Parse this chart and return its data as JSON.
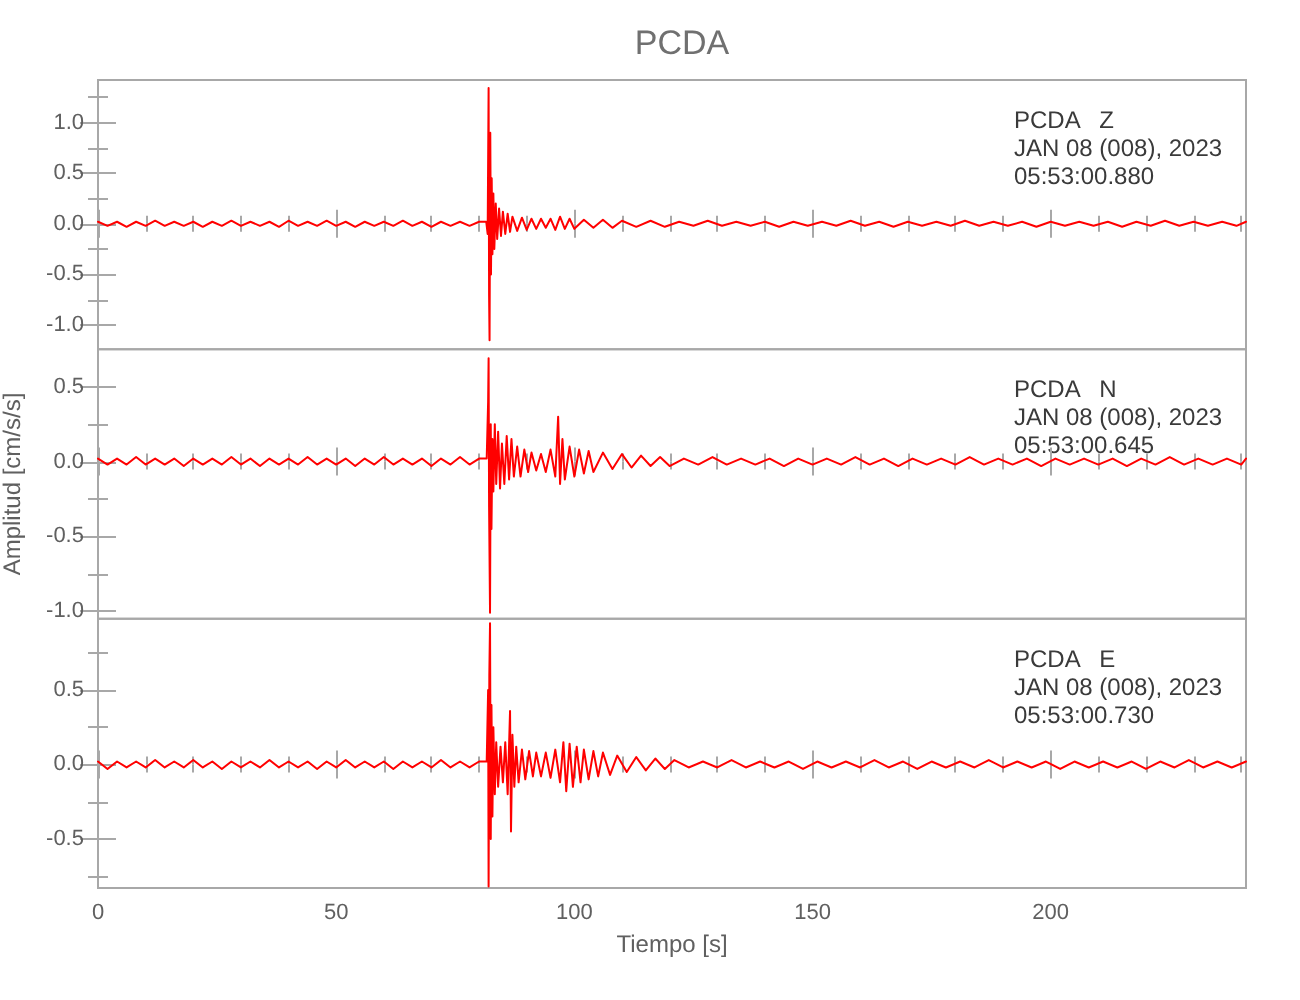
{
  "chart_data": [
    {
      "type": "line",
      "title": "PCDA",
      "color": "#ff0000",
      "tick_labels": "y",
      "xlim": [
        0,
        241
      ],
      "xticks": [
        0,
        {
          "value": 10,
          "label": null
        },
        {
          "value": 20,
          "label": null
        },
        {
          "value": 30,
          "label": null
        },
        {
          "value": 40,
          "label": null
        },
        50,
        {
          "value": 60,
          "label": null
        },
        {
          "value": 70,
          "label": null
        },
        {
          "value": 80,
          "label": null
        },
        {
          "value": 90,
          "label": null
        },
        100,
        {
          "value": 110,
          "label": null
        },
        {
          "value": 120,
          "label": null
        },
        {
          "value": 130,
          "label": null
        },
        {
          "value": 140,
          "label": null
        },
        150,
        {
          "value": 160,
          "label": null
        },
        {
          "value": 170,
          "label": null
        },
        {
          "value": 180,
          "label": null
        },
        {
          "value": 190,
          "label": null
        },
        200,
        {
          "value": 210,
          "label": null
        },
        {
          "value": 220,
          "label": null
        },
        {
          "value": 230,
          "label": null
        },
        {
          "value": 240,
          "label": null
        }
      ],
      "ylim": [
        -1.24,
        1.42
      ],
      "yticks": [
        {
          "value": -1,
          "label": "-1.0"
        },
        {
          "value": -0.75,
          "label": null
        },
        {
          "value": -0.5,
          "label": "-0.5"
        },
        {
          "value": -0.25,
          "label": null
        },
        {
          "value": 0,
          "label": "0.0"
        },
        {
          "value": 0.25,
          "label": null
        },
        {
          "value": 0.5,
          "label": "0.5"
        },
        {
          "value": 0.75,
          "label": null
        },
        {
          "value": 1,
          "label": "1.0"
        },
        {
          "value": 1.25,
          "label": null
        }
      ],
      "annotations": [
        "PCDA   Z",
        "JAN 08 (008), 2023",
        "05:53:00.880"
      ],
      "x": [
        0,
        2,
        4,
        6,
        8,
        10,
        12,
        14,
        16,
        18,
        20,
        22,
        24,
        26,
        28,
        30,
        32,
        34,
        36,
        38,
        40,
        42,
        44,
        46,
        48,
        50,
        52,
        54,
        56,
        58,
        60,
        62,
        64,
        66,
        68,
        70,
        72,
        74,
        76,
        78,
        80,
        81.5,
        81.8,
        82,
        82.1,
        82.2,
        82.35,
        82.5,
        82.65,
        82.8,
        83,
        83.2,
        83.5,
        83.8,
        84.2,
        84.6,
        85,
        85.5,
        86,
        86.5,
        87,
        88,
        89,
        90,
        91,
        92,
        93,
        94,
        95,
        96,
        97,
        98,
        99,
        100,
        102,
        104,
        106,
        108,
        110,
        113,
        116,
        119,
        122,
        125,
        128,
        131,
        134,
        137,
        140,
        143,
        146,
        149,
        152,
        155,
        158,
        161,
        164,
        167,
        170,
        173,
        176,
        179,
        182,
        185,
        188,
        191,
        194,
        197,
        200,
        203,
        206,
        209,
        212,
        215,
        218,
        221,
        224,
        227,
        230,
        233,
        236,
        239,
        241
      ],
      "values": [
        0.02,
        -0.02,
        0.02,
        -0.03,
        0.02,
        -0.02,
        0.03,
        -0.02,
        0.02,
        -0.02,
        0.02,
        -0.03,
        0.02,
        -0.02,
        0.03,
        -0.02,
        0.02,
        -0.02,
        0.02,
        -0.03,
        0.03,
        -0.02,
        0.02,
        -0.02,
        0.03,
        -0.02,
        0.02,
        -0.03,
        0.02,
        -0.02,
        0.02,
        -0.02,
        0.03,
        -0.02,
        0.02,
        -0.03,
        0.02,
        -0.02,
        0.02,
        -0.02,
        0.02,
        0.02,
        -0.1,
        1.34,
        -0.7,
        -1.15,
        0.9,
        -0.5,
        0.45,
        -0.3,
        0.3,
        -0.25,
        0.2,
        -0.15,
        0.15,
        -0.12,
        0.12,
        -0.1,
        0.1,
        -0.08,
        0.07,
        -0.07,
        0.06,
        -0.06,
        0.05,
        -0.05,
        0.05,
        -0.04,
        0.05,
        -0.06,
        0.07,
        -0.05,
        0.05,
        -0.05,
        0.04,
        -0.04,
        0.04,
        -0.04,
        0.03,
        -0.03,
        0.03,
        -0.03,
        0.02,
        -0.02,
        0.03,
        -0.02,
        0.02,
        -0.02,
        0.02,
        -0.03,
        0.02,
        -0.02,
        0.02,
        -0.02,
        0.03,
        -0.02,
        0.02,
        -0.03,
        0.02,
        -0.02,
        0.02,
        -0.02,
        0.03,
        -0.02,
        0.02,
        -0.02,
        0.02,
        -0.03,
        0.02,
        -0.02,
        0.02,
        -0.02,
        0.02,
        -0.03,
        0.02,
        -0.02,
        0.03,
        -0.02,
        0.02,
        -0.02,
        0.02,
        -0.02,
        0.02
      ]
    },
    {
      "type": "line",
      "ylabel": "Amplitud [cm/s/s]",
      "color": "#ff0000",
      "tick_labels": "y",
      "xlim": [
        0,
        241
      ],
      "xticks": [
        0,
        {
          "value": 10,
          "label": null
        },
        {
          "value": 20,
          "label": null
        },
        {
          "value": 30,
          "label": null
        },
        {
          "value": 40,
          "label": null
        },
        50,
        {
          "value": 60,
          "label": null
        },
        {
          "value": 70,
          "label": null
        },
        {
          "value": 80,
          "label": null
        },
        {
          "value": 90,
          "label": null
        },
        100,
        {
          "value": 110,
          "label": null
        },
        {
          "value": 120,
          "label": null
        },
        {
          "value": 130,
          "label": null
        },
        {
          "value": 140,
          "label": null
        },
        150,
        {
          "value": 160,
          "label": null
        },
        {
          "value": 170,
          "label": null
        },
        {
          "value": 180,
          "label": null
        },
        {
          "value": 190,
          "label": null
        },
        200,
        {
          "value": 210,
          "label": null
        },
        {
          "value": 220,
          "label": null
        },
        {
          "value": 230,
          "label": null
        },
        {
          "value": 240,
          "label": null
        }
      ],
      "ylim": [
        -1.05,
        0.75
      ],
      "yticks": [
        {
          "value": -1,
          "label": "-1.0"
        },
        {
          "value": -0.75,
          "label": null
        },
        {
          "value": -0.5,
          "label": "-0.5"
        },
        {
          "value": -0.25,
          "label": null
        },
        {
          "value": 0,
          "label": "0.0"
        },
        {
          "value": 0.25,
          "label": null
        },
        {
          "value": 0.5,
          "label": "0.5"
        }
      ],
      "annotations": [
        "PCDA   N",
        "JAN 08 (008), 2023",
        "05:53:00.645"
      ],
      "x": [
        0,
        2,
        4,
        6,
        8,
        10,
        12,
        14,
        16,
        18,
        20,
        22,
        24,
        26,
        28,
        30,
        32,
        34,
        36,
        38,
        40,
        42,
        44,
        46,
        48,
        50,
        52,
        54,
        56,
        58,
        60,
        62,
        64,
        66,
        68,
        70,
        72,
        74,
        76,
        78,
        80,
        81.6,
        81.9,
        82,
        82.1,
        82.3,
        82.45,
        82.6,
        82.8,
        83,
        83.3,
        83.6,
        84,
        84.4,
        84.8,
        85.3,
        85.8,
        86.3,
        86.8,
        87.3,
        88,
        88.7,
        89.5,
        90.3,
        91,
        92,
        93,
        94,
        95,
        96,
        96.6,
        97,
        97.5,
        98,
        99,
        100,
        101,
        102,
        103,
        104,
        106,
        108,
        110,
        112,
        114,
        116,
        118,
        120,
        123,
        126,
        129,
        132,
        135,
        138,
        141,
        144,
        147,
        150,
        153,
        156,
        159,
        162,
        165,
        168,
        171,
        174,
        177,
        180,
        183,
        186,
        189,
        192,
        195,
        198,
        201,
        204,
        207,
        210,
        213,
        216,
        219,
        222,
        225,
        228,
        231,
        234,
        237,
        240,
        241
      ],
      "values": [
        0.02,
        -0.02,
        0.02,
        -0.02,
        0.03,
        -0.02,
        0.02,
        -0.02,
        0.02,
        -0.03,
        0.02,
        -0.02,
        0.02,
        -0.02,
        0.03,
        -0.02,
        0.02,
        -0.03,
        0.02,
        -0.02,
        0.02,
        -0.02,
        0.03,
        -0.02,
        0.02,
        -0.02,
        0.02,
        -0.03,
        0.02,
        -0.02,
        0.03,
        -0.02,
        0.02,
        -0.02,
        0.02,
        -0.03,
        0.02,
        -0.02,
        0.03,
        -0.02,
        0.02,
        0.02,
        0.4,
        0.69,
        -0.3,
        -1.01,
        0.25,
        -0.45,
        0.15,
        -0.2,
        0.25,
        -0.15,
        0.2,
        -0.18,
        0.12,
        -0.15,
        0.17,
        -0.12,
        0.15,
        -0.1,
        0.1,
        -0.1,
        0.08,
        -0.07,
        0.06,
        -0.06,
        0.05,
        -0.07,
        0.08,
        -0.1,
        0.3,
        -0.15,
        0.15,
        -0.12,
        0.1,
        -0.1,
        0.08,
        -0.08,
        0.07,
        -0.07,
        0.06,
        -0.05,
        0.05,
        -0.04,
        0.04,
        -0.03,
        0.03,
        -0.03,
        0.02,
        -0.02,
        0.03,
        -0.02,
        0.02,
        -0.02,
        0.02,
        -0.03,
        0.02,
        -0.02,
        0.02,
        -0.02,
        0.03,
        -0.02,
        0.02,
        -0.03,
        0.02,
        -0.02,
        0.02,
        -0.02,
        0.03,
        -0.02,
        0.02,
        -0.02,
        0.02,
        -0.03,
        0.02,
        -0.02,
        0.02,
        -0.02,
        0.02,
        -0.03,
        0.02,
        -0.02,
        0.03,
        -0.02,
        0.02,
        -0.02,
        0.02,
        -0.02,
        0.02
      ]
    },
    {
      "type": "line",
      "xlabel": "Tiempo [s]",
      "color": "#ff0000",
      "xlim": [
        0,
        241
      ],
      "xticks": [
        0,
        {
          "value": 10,
          "label": null
        },
        {
          "value": 20,
          "label": null
        },
        {
          "value": 30,
          "label": null
        },
        {
          "value": 40,
          "label": null
        },
        50,
        {
          "value": 60,
          "label": null
        },
        {
          "value": 70,
          "label": null
        },
        {
          "value": 80,
          "label": null
        },
        {
          "value": 90,
          "label": null
        },
        100,
        {
          "value": 110,
          "label": null
        },
        {
          "value": 120,
          "label": null
        },
        {
          "value": 130,
          "label": null
        },
        {
          "value": 140,
          "label": null
        },
        150,
        {
          "value": 160,
          "label": null
        },
        {
          "value": 170,
          "label": null
        },
        {
          "value": 180,
          "label": null
        },
        {
          "value": 190,
          "label": null
        },
        200,
        {
          "value": 210,
          "label": null
        },
        {
          "value": 220,
          "label": null
        },
        {
          "value": 230,
          "label": null
        },
        {
          "value": 240,
          "label": null
        }
      ],
      "ylim": [
        -0.83,
        0.98
      ],
      "yticks": [
        {
          "value": -0.75,
          "label": null
        },
        {
          "value": -0.5,
          "label": "-0.5"
        },
        {
          "value": -0.25,
          "label": null
        },
        {
          "value": 0,
          "label": "0.0"
        },
        {
          "value": 0.25,
          "label": null
        },
        {
          "value": 0.5,
          "label": "0.5"
        },
        {
          "value": 0.75,
          "label": null
        }
      ],
      "annotations": [
        "PCDA   E",
        "JAN 08 (008), 2023",
        "05:53:00.730"
      ],
      "x": [
        0,
        2,
        4,
        6,
        8,
        10,
        12,
        14,
        16,
        18,
        20,
        22,
        24,
        26,
        28,
        30,
        32,
        34,
        36,
        38,
        40,
        42,
        44,
        46,
        48,
        50,
        52,
        54,
        56,
        58,
        60,
        62,
        64,
        66,
        68,
        70,
        72,
        74,
        76,
        78,
        80,
        81.6,
        81.9,
        82,
        82.15,
        82.3,
        82.45,
        82.6,
        82.8,
        83,
        83.3,
        83.6,
        84,
        84.5,
        85,
        85.5,
        86,
        86.5,
        86.7,
        87,
        87.4,
        87.8,
        88.3,
        89,
        89.7,
        90.5,
        91.3,
        92,
        93,
        94,
        95,
        96,
        97,
        97.7,
        98.3,
        99,
        99.7,
        100.5,
        101.3,
        102,
        103,
        104,
        105,
        106,
        107.5,
        109,
        111,
        113,
        115,
        117,
        119,
        121,
        124,
        127,
        130,
        133,
        136,
        139,
        142,
        145,
        148,
        151,
        154,
        157,
        160,
        163,
        166,
        169,
        172,
        175,
        178,
        181,
        184,
        187,
        190,
        193,
        196,
        199,
        202,
        205,
        208,
        211,
        214,
        217,
        220,
        223,
        226,
        229,
        232,
        235,
        238,
        241
      ],
      "values": [
        0.02,
        -0.03,
        0.02,
        -0.02,
        0.02,
        -0.02,
        0.03,
        -0.02,
        0.02,
        -0.02,
        0.03,
        -0.02,
        0.02,
        -0.03,
        0.02,
        -0.02,
        0.02,
        -0.02,
        0.03,
        -0.02,
        0.02,
        -0.02,
        0.02,
        -0.03,
        0.02,
        -0.02,
        0.03,
        -0.02,
        0.02,
        -0.02,
        0.02,
        -0.03,
        0.02,
        -0.02,
        0.02,
        -0.02,
        0.03,
        -0.02,
        0.02,
        -0.02,
        0.02,
        0.02,
        0.5,
        -0.82,
        0.6,
        0.95,
        -0.5,
        0.4,
        -0.35,
        0.25,
        -0.2,
        0.15,
        -0.15,
        0.12,
        -0.12,
        0.15,
        -0.2,
        0.36,
        -0.45,
        0.2,
        -0.15,
        0.12,
        -0.12,
        0.1,
        -0.1,
        0.09,
        -0.08,
        0.08,
        -0.08,
        0.08,
        -0.09,
        0.1,
        -0.12,
        0.15,
        -0.18,
        0.14,
        -0.15,
        0.12,
        -0.12,
        0.1,
        -0.1,
        0.09,
        -0.08,
        0.08,
        -0.07,
        0.06,
        -0.05,
        0.05,
        -0.04,
        0.04,
        -0.03,
        0.03,
        -0.02,
        0.02,
        -0.02,
        0.03,
        -0.02,
        0.02,
        -0.02,
        0.02,
        -0.03,
        0.02,
        -0.02,
        0.02,
        -0.02,
        0.03,
        -0.02,
        0.02,
        -0.03,
        0.02,
        -0.02,
        0.02,
        -0.02,
        0.03,
        -0.02,
        0.02,
        -0.02,
        0.02,
        -0.03,
        0.02,
        -0.02,
        0.02,
        -0.02,
        0.02,
        -0.03,
        0.02,
        -0.02,
        0.03,
        -0.02,
        0.02,
        -0.02,
        0.02
      ]
    }
  ]
}
